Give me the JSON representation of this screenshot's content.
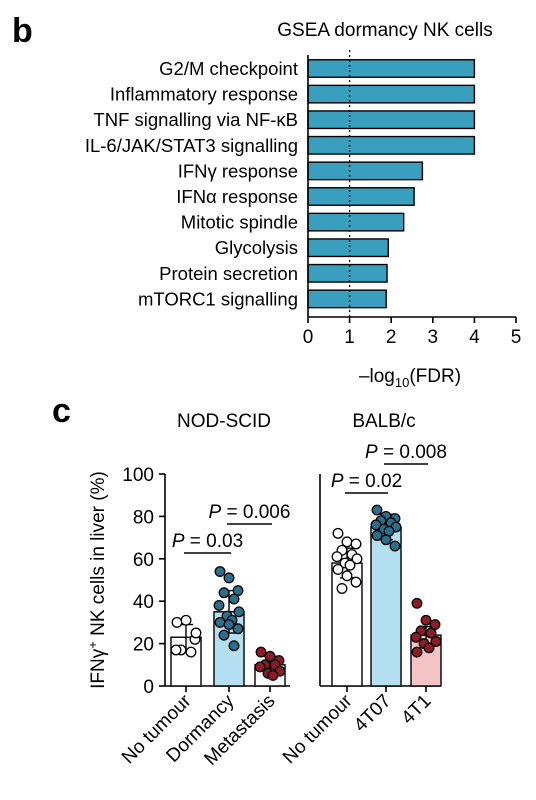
{
  "panels": {
    "b_label": "b",
    "c_label": "c"
  },
  "colors": {
    "bar_teal": "#3a9fbf",
    "dormancy_fill": "#b5dff2",
    "dormancy_dot": "#2c6f8c",
    "metastasis_dot": "#8e1b25",
    "t1_fill": "#f4c3c3",
    "white_fill": "#ffffff"
  },
  "chart_data": [
    {
      "type": "bar",
      "orientation": "horizontal",
      "title": "GSEA dormancy NK cells",
      "categories": [
        "G2/M checkpoint",
        "Inflammatory response",
        "TNF signalling via NF-κB",
        "IL-6/JAK/STAT3 signalling",
        "IFNγ response",
        "IFNα response",
        "Mitotic spindle",
        "Glycolysis",
        "Protein secretion",
        "mTORC1 signalling"
      ],
      "values": [
        4.0,
        4.0,
        4.0,
        4.0,
        2.75,
        2.55,
        2.3,
        1.93,
        1.9,
        1.88
      ],
      "xlabel_main": "–log",
      "xlabel_sub": "10",
      "xlabel_tail": "(FDR)",
      "xlim": [
        0,
        5
      ],
      "xticks": [
        "0",
        "1",
        "2",
        "3",
        "4",
        "5"
      ],
      "threshold": 1,
      "grid": false
    },
    {
      "type": "bar_scatter",
      "group": "NOD-SCID",
      "ylabel_pre": "IFNγ",
      "ylabel_sup": "+",
      "ylabel_post": " NK cells in liver (%)",
      "ylim": [
        0,
        100
      ],
      "yticks": [
        "0",
        "20",
        "40",
        "60",
        "80",
        "100"
      ],
      "categories": [
        "No tumour",
        "Dormancy",
        "Metastasis"
      ],
      "means": [
        23,
        35,
        10
      ],
      "sd": [
        6,
        10,
        4
      ],
      "points": [
        [
          30,
          31,
          22,
          17,
          16,
          17,
          25
        ],
        [
          54,
          51,
          45,
          44,
          41,
          38,
          35,
          33,
          31,
          30,
          29,
          27,
          24,
          19
        ],
        [
          16,
          14,
          12,
          10,
          10,
          9,
          7,
          6,
          5
        ]
      ],
      "comparisons": [
        {
          "label": "P = 0.03",
          "from": 0,
          "to": 1
        },
        {
          "label": "P = 0.006",
          "from": 1,
          "to": 2
        }
      ]
    },
    {
      "type": "bar_scatter",
      "group": "BALB/c",
      "ylim": [
        0,
        100
      ],
      "categories": [
        "No tumour",
        "4T07",
        "4T1"
      ],
      "means": [
        58,
        75,
        24
      ],
      "sd": [
        7,
        6,
        4
      ],
      "points": [
        [
          72,
          68,
          67,
          64,
          62,
          61,
          60,
          58,
          57,
          55,
          52,
          49,
          46
        ],
        [
          83,
          80,
          79,
          78,
          77,
          76,
          75,
          74,
          73,
          71,
          69,
          66
        ],
        [
          39,
          31,
          29,
          26,
          25,
          23,
          21,
          20,
          18,
          16
        ]
      ],
      "comparisons": [
        {
          "label": "P = 0.02",
          "from": 0,
          "to": 1
        },
        {
          "label": "P = 0.008",
          "from": 1,
          "to": 2
        }
      ]
    }
  ]
}
